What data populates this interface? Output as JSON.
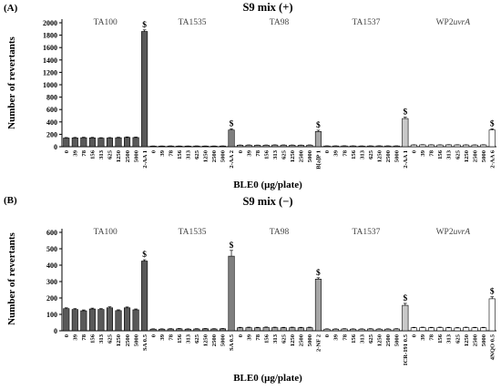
{
  "chart_data": [
    {
      "type": "bar",
      "panel_label": "(A)",
      "title": "S9 mix (+)",
      "ylabel": "Number of revertants",
      "xlabel": "BLE0 (μg/plate)",
      "ylim": [
        0,
        2000
      ],
      "yticks": [
        0,
        200,
        400,
        600,
        800,
        1000,
        1200,
        1400,
        1600,
        1800,
        2000
      ],
      "grid": false,
      "groups": [
        {
          "name": "TA100",
          "color": "#595959",
          "categories": [
            "0",
            "39",
            "78",
            "156",
            "313",
            "625",
            "1250",
            "2500",
            "5000",
            "2-AA 1"
          ],
          "values": [
            140,
            142,
            145,
            143,
            138,
            140,
            145,
            150,
            148,
            1860
          ],
          "errors": [
            8,
            8,
            8,
            8,
            8,
            8,
            8,
            8,
            8,
            25
          ],
          "marks": [
            "",
            "",
            "",
            "",
            "",
            "",
            "",
            "",
            "",
            "$"
          ]
        },
        {
          "name": "TA1535",
          "color": "#7f7f7f",
          "categories": [
            "0",
            "39",
            "78",
            "156",
            "313",
            "625",
            "1250",
            "2500",
            "5000",
            "2-AA 2"
          ],
          "values": [
            10,
            10,
            11,
            10,
            10,
            11,
            10,
            10,
            11,
            270
          ],
          "errors": [
            2,
            2,
            2,
            2,
            2,
            2,
            2,
            2,
            2,
            20
          ],
          "marks": [
            "",
            "",
            "",
            "",
            "",
            "",
            "",
            "",
            "",
            "$"
          ]
        },
        {
          "name": "TA98",
          "color": "#a6a6a6",
          "categories": [
            "0",
            "39",
            "78",
            "156",
            "313",
            "625",
            "1250",
            "2500",
            "5000",
            "B[a]P 1"
          ],
          "values": [
            25,
            26,
            24,
            25,
            27,
            26,
            25,
            24,
            26,
            245
          ],
          "errors": [
            3,
            3,
            3,
            3,
            3,
            3,
            3,
            3,
            3,
            20
          ],
          "marks": [
            "",
            "",
            "",
            "",
            "",
            "",
            "",
            "",
            "",
            "$"
          ]
        },
        {
          "name": "TA1537",
          "color": "#c8c8c8",
          "categories": [
            "0",
            "39",
            "78",
            "156",
            "313",
            "625",
            "1250",
            "2500",
            "5000",
            "2-AA 1"
          ],
          "values": [
            12,
            12,
            13,
            12,
            11,
            12,
            13,
            12,
            12,
            455
          ],
          "errors": [
            2,
            2,
            2,
            2,
            2,
            2,
            2,
            2,
            2,
            20
          ],
          "marks": [
            "",
            "",
            "",
            "",
            "",
            "",
            "",
            "",
            "",
            "$"
          ]
        },
        {
          "name": "WP2uvrA",
          "color": "#ffffff",
          "categories": [
            "0",
            "39",
            "78",
            "156",
            "313",
            "625",
            "1250",
            "2500",
            "5000",
            "2-AA 6"
          ],
          "values": [
            28,
            30,
            29,
            28,
            30,
            29,
            28,
            27,
            29,
            270
          ],
          "errors": [
            3,
            3,
            3,
            3,
            3,
            3,
            3,
            3,
            3,
            18
          ],
          "marks": [
            "",
            "",
            "",
            "",
            "",
            "",
            "",
            "",
            "",
            "$"
          ]
        }
      ]
    },
    {
      "type": "bar",
      "panel_label": "(B)",
      "title": "S9 mix (−)",
      "ylabel": "Number of revertants",
      "xlabel": "BLE0 (μg/plate)",
      "ylim": [
        0,
        600
      ],
      "yticks": [
        0,
        100,
        200,
        300,
        400,
        500,
        600
      ],
      "grid": false,
      "groups": [
        {
          "name": "TA100",
          "color": "#595959",
          "categories": [
            "0",
            "39",
            "78",
            "156",
            "313",
            "625",
            "1250",
            "2500",
            "5000",
            "SA 0.5"
          ],
          "values": [
            135,
            130,
            122,
            133,
            130,
            140,
            123,
            140,
            128,
            425
          ],
          "errors": [
            5,
            5,
            5,
            5,
            5,
            6,
            5,
            5,
            5,
            8
          ],
          "marks": [
            "",
            "",
            "",
            "",
            "",
            "",
            "",
            "",
            "",
            "$"
          ]
        },
        {
          "name": "TA1535",
          "color": "#7f7f7f",
          "categories": [
            "0",
            "39",
            "78",
            "156",
            "313",
            "625",
            "1250",
            "2500",
            "5000",
            "SA 0.5"
          ],
          "values": [
            10,
            10,
            11,
            12,
            10,
            11,
            12,
            11,
            12,
            455
          ],
          "errors": [
            2,
            2,
            2,
            2,
            2,
            2,
            2,
            2,
            2,
            35
          ],
          "marks": [
            "",
            "",
            "",
            "",
            "",
            "",
            "",
            "",
            "",
            "$"
          ]
        },
        {
          "name": "TA98",
          "color": "#a6a6a6",
          "categories": [
            "0",
            "39",
            "78",
            "156",
            "313",
            "625",
            "1250",
            "2500",
            "5000",
            "2-NF 2"
          ],
          "values": [
            18,
            19,
            18,
            20,
            19,
            18,
            19,
            18,
            19,
            315
          ],
          "errors": [
            3,
            3,
            3,
            3,
            3,
            3,
            3,
            3,
            3,
            8
          ],
          "marks": [
            "",
            "",
            "",
            "",
            "",
            "",
            "",
            "",
            "",
            "$"
          ]
        },
        {
          "name": "TA1537",
          "color": "#c8c8c8",
          "categories": [
            "0",
            "39",
            "78",
            "156",
            "313",
            "625",
            "1250",
            "2500",
            "5000",
            "ICR-191 0.5"
          ],
          "values": [
            10,
            10,
            11,
            10,
            10,
            11,
            10,
            10,
            11,
            155
          ],
          "errors": [
            2,
            2,
            2,
            2,
            2,
            2,
            2,
            2,
            2,
            12
          ],
          "marks": [
            "",
            "",
            "",
            "",
            "",
            "",
            "",
            "",
            "",
            "$"
          ]
        },
        {
          "name": "WP2uvrA",
          "color": "#ffffff",
          "categories": [
            "0",
            "39",
            "78",
            "156",
            "313",
            "625",
            "1250",
            "2500",
            "5000",
            "4NQO 0.5"
          ],
          "values": [
            18,
            19,
            18,
            19,
            18,
            17,
            19,
            18,
            18,
            195
          ],
          "errors": [
            3,
            3,
            3,
            3,
            3,
            3,
            3,
            3,
            3,
            12
          ],
          "marks": [
            "",
            "",
            "",
            "",
            "",
            "",
            "",
            "",
            "",
            "$"
          ]
        }
      ]
    }
  ]
}
